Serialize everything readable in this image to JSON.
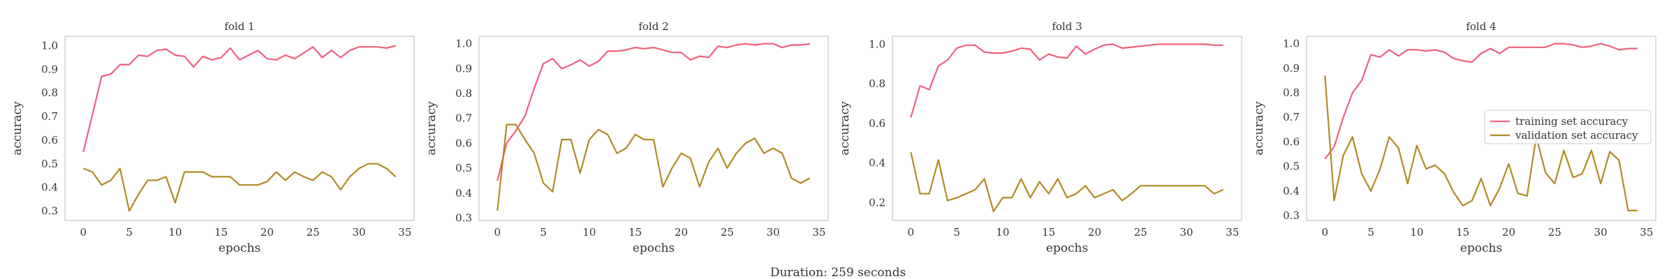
{
  "footer": {
    "text": "Duration: 259 seconds"
  },
  "colors": {
    "training": "#f0607a",
    "validation": "#b08a26",
    "frame": "#c8c8c8"
  },
  "chart_data": [
    {
      "type": "line",
      "title": "fold 1",
      "xlabel": "epochs",
      "ylabel": "accuracy",
      "xlim": [
        -2,
        36
      ],
      "ylim": [
        0.26,
        1.04
      ],
      "xticks": [
        0,
        5,
        10,
        15,
        20,
        25,
        30,
        35
      ],
      "yticks": [
        0.3,
        0.4,
        0.5,
        0.6,
        0.7,
        0.8,
        0.9,
        1.0
      ],
      "ytick_labels": [
        "0.3",
        "0.4",
        "0.5",
        "0.6",
        "0.7",
        "0.8",
        "0.9",
        "1.0"
      ],
      "grid": false,
      "legend": null,
      "x": [
        0,
        1,
        2,
        3,
        4,
        5,
        6,
        7,
        8,
        9,
        10,
        11,
        12,
        13,
        14,
        15,
        16,
        17,
        18,
        19,
        20,
        21,
        22,
        23,
        24,
        25,
        26,
        27,
        28,
        29,
        30,
        31,
        32,
        33,
        34
      ],
      "series": [
        {
          "name": "training set accuracy",
          "color_key": "training",
          "values": [
            0.55,
            0.71,
            0.87,
            0.88,
            0.92,
            0.92,
            0.96,
            0.955,
            0.98,
            0.985,
            0.96,
            0.955,
            0.91,
            0.955,
            0.94,
            0.95,
            0.99,
            0.94,
            0.96,
            0.98,
            0.945,
            0.94,
            0.96,
            0.945,
            0.97,
            0.995,
            0.95,
            0.98,
            0.95,
            0.98,
            0.995,
            0.995,
            0.995,
            0.99,
            1.0
          ]
        },
        {
          "name": "validation set accuracy",
          "color_key": "validation",
          "values": [
            0.48,
            0.465,
            0.41,
            0.43,
            0.48,
            0.3,
            0.37,
            0.43,
            0.43,
            0.445,
            0.335,
            0.465,
            0.465,
            0.465,
            0.445,
            0.445,
            0.445,
            0.41,
            0.41,
            0.41,
            0.425,
            0.465,
            0.43,
            0.465,
            0.445,
            0.43,
            0.465,
            0.445,
            0.39,
            0.445,
            0.48,
            0.5,
            0.5,
            0.48,
            0.445
          ]
        }
      ]
    },
    {
      "type": "line",
      "title": "fold 2",
      "xlabel": "epochs",
      "ylabel": "accuracy",
      "xlim": [
        -2,
        36
      ],
      "ylim": [
        0.29,
        1.03
      ],
      "xticks": [
        0,
        5,
        10,
        15,
        20,
        25,
        30,
        35
      ],
      "yticks": [
        0.3,
        0.4,
        0.5,
        0.6,
        0.7,
        0.8,
        0.9,
        1.0
      ],
      "ytick_labels": [
        "0.3",
        "0.4",
        "0.5",
        "0.6",
        "0.7",
        "0.8",
        "0.9",
        "1.0"
      ],
      "grid": false,
      "legend": null,
      "x": [
        0,
        1,
        2,
        3,
        4,
        5,
        6,
        7,
        8,
        9,
        10,
        11,
        12,
        13,
        14,
        15,
        16,
        17,
        18,
        19,
        20,
        21,
        22,
        23,
        24,
        25,
        26,
        27,
        28,
        29,
        30,
        31,
        32,
        33,
        34
      ],
      "series": [
        {
          "name": "training set accuracy",
          "color_key": "training",
          "values": [
            0.45,
            0.6,
            0.65,
            0.71,
            0.82,
            0.92,
            0.94,
            0.9,
            0.915,
            0.935,
            0.91,
            0.93,
            0.97,
            0.97,
            0.975,
            0.985,
            0.98,
            0.985,
            0.975,
            0.965,
            0.965,
            0.935,
            0.95,
            0.945,
            0.99,
            0.985,
            0.995,
            1.0,
            0.995,
            1.0,
            1.0,
            0.985,
            0.995,
            0.995,
            1.0
          ]
        },
        {
          "name": "validation set accuracy",
          "color_key": "validation",
          "values": [
            0.33,
            0.675,
            0.675,
            0.615,
            0.56,
            0.44,
            0.405,
            0.615,
            0.615,
            0.48,
            0.615,
            0.655,
            0.635,
            0.56,
            0.58,
            0.635,
            0.615,
            0.615,
            0.425,
            0.5,
            0.56,
            0.54,
            0.425,
            0.525,
            0.58,
            0.5,
            0.56,
            0.6,
            0.62,
            0.56,
            0.58,
            0.56,
            0.46,
            0.44,
            0.46
          ]
        }
      ]
    },
    {
      "type": "line",
      "title": "fold 3",
      "xlabel": "epochs",
      "ylabel": "accuracy",
      "xlim": [
        -2,
        36
      ],
      "ylim": [
        0.11,
        1.04
      ],
      "xticks": [
        0,
        5,
        10,
        15,
        20,
        25,
        30,
        35
      ],
      "yticks": [
        0.2,
        0.4,
        0.6,
        0.8,
        1.0
      ],
      "ytick_labels": [
        "0.2",
        "0.4",
        "0.6",
        "0.8",
        "1.0"
      ],
      "grid": false,
      "legend": null,
      "x": [
        0,
        1,
        2,
        3,
        4,
        5,
        6,
        7,
        8,
        9,
        10,
        11,
        12,
        13,
        14,
        15,
        16,
        17,
        18,
        19,
        20,
        21,
        22,
        23,
        24,
        25,
        26,
        27,
        28,
        29,
        30,
        31,
        32,
        33,
        34
      ],
      "series": [
        {
          "name": "training set accuracy",
          "color_key": "training",
          "values": [
            0.63,
            0.79,
            0.77,
            0.89,
            0.92,
            0.98,
            0.995,
            0.995,
            0.96,
            0.955,
            0.955,
            0.965,
            0.98,
            0.975,
            0.92,
            0.95,
            0.935,
            0.93,
            0.99,
            0.95,
            0.975,
            0.995,
            1.0,
            0.98,
            0.985,
            0.99,
            0.995,
            1.0,
            1.0,
            1.0,
            1.0,
            1.0,
            1.0,
            0.995,
            0.995
          ]
        },
        {
          "name": "validation set accuracy",
          "color_key": "validation",
          "values": [
            0.455,
            0.245,
            0.245,
            0.415,
            0.21,
            0.225,
            0.245,
            0.265,
            0.32,
            0.155,
            0.225,
            0.225,
            0.32,
            0.225,
            0.305,
            0.245,
            0.32,
            0.225,
            0.245,
            0.285,
            0.225,
            0.245,
            0.265,
            0.21,
            0.245,
            0.285,
            0.285,
            0.285,
            0.285,
            0.285,
            0.285,
            0.285,
            0.285,
            0.245,
            0.265
          ]
        }
      ]
    },
    {
      "type": "line",
      "title": "fold 4",
      "xlabel": "epochs",
      "ylabel": "accuracy",
      "xlim": [
        -2,
        36
      ],
      "ylim": [
        0.28,
        1.03
      ],
      "xticks": [
        0,
        5,
        10,
        15,
        20,
        25,
        30,
        35
      ],
      "yticks": [
        0.3,
        0.4,
        0.5,
        0.6,
        0.7,
        0.8,
        0.9,
        1.0
      ],
      "ytick_labels": [
        "0.3",
        "0.4",
        "0.5",
        "0.6",
        "0.7",
        "0.8",
        "0.9",
        "1.0"
      ],
      "grid": false,
      "legend": {
        "placement": "center-right",
        "entries": [
          "training set accuracy",
          "validation set accuracy"
        ]
      },
      "x": [
        0,
        1,
        2,
        3,
        4,
        5,
        6,
        7,
        8,
        9,
        10,
        11,
        12,
        13,
        14,
        15,
        16,
        17,
        18,
        19,
        20,
        21,
        22,
        23,
        24,
        25,
        26,
        27,
        28,
        29,
        30,
        31,
        32,
        33,
        34
      ],
      "series": [
        {
          "name": "training set accuracy",
          "color_key": "training",
          "values": [
            0.53,
            0.58,
            0.7,
            0.8,
            0.85,
            0.955,
            0.945,
            0.975,
            0.95,
            0.975,
            0.975,
            0.97,
            0.975,
            0.965,
            0.94,
            0.93,
            0.925,
            0.96,
            0.98,
            0.96,
            0.985,
            0.985,
            0.985,
            0.985,
            0.985,
            1.0,
            1.0,
            0.995,
            0.985,
            0.99,
            1.0,
            0.99,
            0.975,
            0.98,
            0.98
          ]
        },
        {
          "name": "validation set accuracy",
          "color_key": "validation",
          "values": [
            0.87,
            0.36,
            0.545,
            0.62,
            0.47,
            0.4,
            0.49,
            0.62,
            0.575,
            0.43,
            0.585,
            0.49,
            0.505,
            0.47,
            0.395,
            0.34,
            0.36,
            0.45,
            0.34,
            0.41,
            0.51,
            0.39,
            0.38,
            0.62,
            0.475,
            0.43,
            0.565,
            0.455,
            0.47,
            0.565,
            0.43,
            0.56,
            0.525,
            0.32,
            0.32
          ]
        }
      ]
    }
  ]
}
